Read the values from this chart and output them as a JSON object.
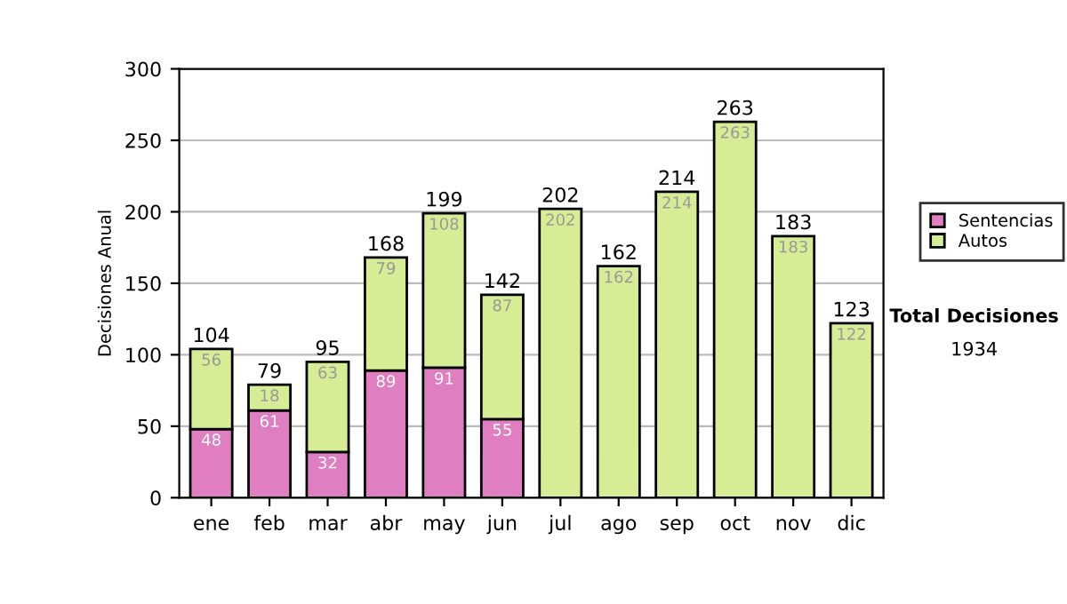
{
  "chart_data": {
    "type": "bar",
    "stacked": true,
    "ylabel": "Decisiones Anual",
    "categories": [
      "ene",
      "feb",
      "mar",
      "abr",
      "may",
      "jun",
      "jul",
      "ago",
      "sep",
      "oct",
      "nov",
      "dic"
    ],
    "series": [
      {
        "name": "Sentencias",
        "color": "#df7fc2",
        "values": [
          48,
          61,
          32,
          89,
          91,
          55,
          0,
          0,
          0,
          0,
          0,
          null
        ],
        "value_labels": [
          "48",
          "61",
          "32",
          "89",
          "91",
          "55",
          null,
          null,
          null,
          null,
          null,
          null
        ]
      },
      {
        "name": "Autos",
        "color": "#d6ed96",
        "values": [
          56,
          18,
          63,
          79,
          108,
          87,
          202,
          162,
          214,
          263,
          183,
          122
        ],
        "value_labels": [
          "56",
          "18",
          "63",
          "79",
          "108",
          "87",
          "202",
          "162",
          "214",
          "263",
          "183",
          "122"
        ]
      }
    ],
    "totals": [
      "104",
      "79",
      "95",
      "168",
      "199",
      "142",
      "202",
      "162",
      "214",
      "263",
      "183",
      "123"
    ],
    "ylim": [
      0,
      300
    ],
    "yticks": [
      0,
      50,
      100,
      150,
      200,
      250,
      300
    ],
    "grid": "y",
    "legend": "right",
    "annotations": [
      "Total Decisiones",
      "1934"
    ]
  }
}
